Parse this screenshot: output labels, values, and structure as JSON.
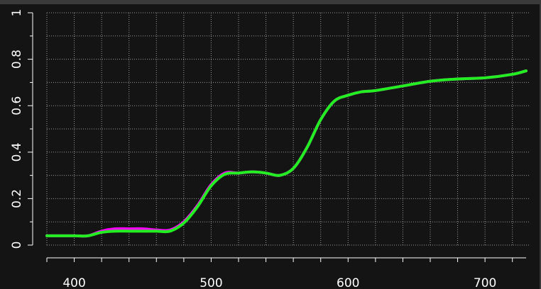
{
  "chart_data": {
    "type": "line",
    "title": "",
    "xlabel": "",
    "ylabel": "",
    "xlim": [
      380,
      730
    ],
    "ylim": [
      0,
      1
    ],
    "x_ticks": [
      400,
      500,
      600,
      700
    ],
    "y_ticks": [
      0,
      0.2,
      0.4,
      0.6,
      0.8,
      1
    ],
    "x_tick_labels": [
      "400",
      "500",
      "600",
      "700"
    ],
    "y_tick_labels": [
      "0",
      "0.2",
      "0.4",
      "0.6",
      "0.8",
      "1"
    ],
    "grid": true,
    "background_color": "#141414",
    "frame_color": "#3a3a3a",
    "series": [
      {
        "color": "#ff00ff",
        "x": [
          380,
          400,
          410,
          420,
          430,
          440,
          450,
          460,
          470,
          480,
          490,
          500,
          510,
          520,
          530,
          540,
          550,
          560,
          570,
          580,
          590,
          600,
          610,
          620,
          640,
          660,
          680,
          700,
          720,
          730
        ],
        "y": [
          0.04,
          0.04,
          0.04,
          0.06,
          0.07,
          0.07,
          0.07,
          0.065,
          0.065,
          0.1,
          0.17,
          0.26,
          0.31,
          0.31,
          0.315,
          0.31,
          0.3,
          0.33,
          0.42,
          0.54,
          0.62,
          0.645,
          0.66,
          0.665,
          0.685,
          0.705,
          0.715,
          0.72,
          0.735,
          0.75
        ]
      },
      {
        "color": "#22ee22",
        "x": [
          380,
          400,
          410,
          420,
          430,
          440,
          450,
          460,
          470,
          480,
          490,
          500,
          510,
          520,
          530,
          540,
          550,
          560,
          570,
          580,
          590,
          600,
          610,
          620,
          640,
          660,
          680,
          700,
          720,
          730
        ],
        "y": [
          0.04,
          0.04,
          0.04,
          0.055,
          0.06,
          0.06,
          0.06,
          0.06,
          0.06,
          0.095,
          0.165,
          0.255,
          0.305,
          0.31,
          0.315,
          0.31,
          0.3,
          0.33,
          0.42,
          0.54,
          0.62,
          0.645,
          0.66,
          0.665,
          0.685,
          0.705,
          0.715,
          0.72,
          0.735,
          0.75
        ]
      }
    ]
  }
}
